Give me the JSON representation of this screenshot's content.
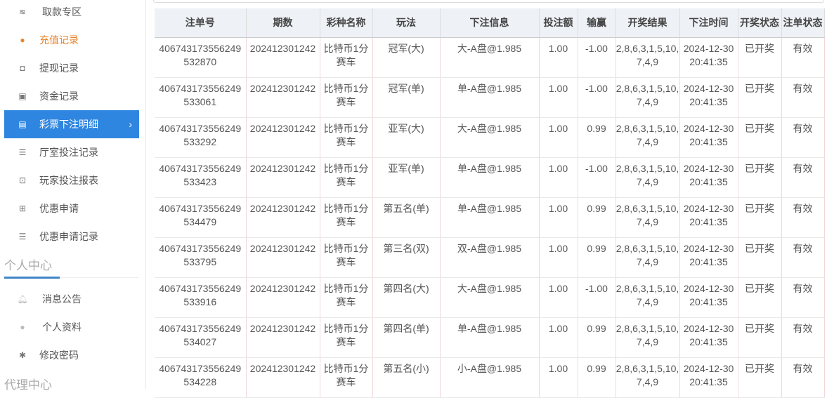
{
  "sidebar": {
    "items": [
      {
        "label": "取款专区",
        "icon": "hand-money-icon"
      },
      {
        "label": "充值记录",
        "icon": "money-bag-icon"
      },
      {
        "label": "提现记录",
        "icon": "wallet-icon"
      },
      {
        "label": "资金记录",
        "icon": "cash-box-icon"
      },
      {
        "label": "彩票下注明细",
        "icon": "list-icon"
      },
      {
        "label": "厅室投注记录",
        "icon": "list-lines-icon"
      },
      {
        "label": "玩家投注报表",
        "icon": "chart-icon"
      },
      {
        "label": "优惠申请",
        "icon": "gift-icon"
      },
      {
        "label": "优惠申请记录",
        "icon": "list-lines-icon"
      }
    ],
    "section_personal": "个人中心",
    "personal_items": [
      {
        "label": "消息公告",
        "icon": "bell-icon"
      },
      {
        "label": "个人资料",
        "icon": "user-icon"
      },
      {
        "label": "修改密码",
        "icon": "gear-icon"
      }
    ],
    "section_agent": "代理中心",
    "accent": "#2f86e0"
  },
  "table": {
    "headers": [
      "注单号",
      "期数",
      "彩种名称",
      "玩法",
      "下注信息",
      "投注额",
      "输赢",
      "开奖结果",
      "下注时间",
      "开奖状态",
      "注单状态"
    ],
    "rows": [
      [
        "406743173556249 532870",
        "202412301242",
        "比特币1分 赛车",
        "冠军(大)",
        "大-A盘@1.985",
        "1.00",
        "-1.00",
        "2,8,6,3,1,5,10, 7,4,9",
        "2024-12-30 20:41:35",
        "已开奖",
        "有效"
      ],
      [
        "406743173556249 533061",
        "202412301242",
        "比特币1分 赛车",
        "冠军(单)",
        "单-A盘@1.985",
        "1.00",
        "-1.00",
        "2,8,6,3,1,5,10, 7,4,9",
        "2024-12-30 20:41:35",
        "已开奖",
        "有效"
      ],
      [
        "406743173556249 533292",
        "202412301242",
        "比特币1分 赛车",
        "亚军(大)",
        "大-A盘@1.985",
        "1.00",
        "0.99",
        "2,8,6,3,1,5,10, 7,4,9",
        "2024-12-30 20:41:35",
        "已开奖",
        "有效"
      ],
      [
        "406743173556249 533423",
        "202412301242",
        "比特币1分 赛车",
        "亚军(单)",
        "单-A盘@1.985",
        "1.00",
        "-1.00",
        "2,8,6,3,1,5,10, 7,4,9",
        "2024-12-30 20:41:35",
        "已开奖",
        "有效"
      ],
      [
        "406743173556249 534479",
        "202412301242",
        "比特币1分 赛车",
        "第五名(单)",
        "单-A盘@1.985",
        "1.00",
        "0.99",
        "2,8,6,3,1,5,10, 7,4,9",
        "2024-12-30 20:41:35",
        "已开奖",
        "有效"
      ],
      [
        "406743173556249 533795",
        "202412301242",
        "比特币1分 赛车",
        "第三名(双)",
        "双-A盘@1.985",
        "1.00",
        "0.99",
        "2,8,6,3,1,5,10, 7,4,9",
        "2024-12-30 20:41:35",
        "已开奖",
        "有效"
      ],
      [
        "406743173556249 533916",
        "202412301242",
        "比特币1分 赛车",
        "第四名(大)",
        "大-A盘@1.985",
        "1.00",
        "-1.00",
        "2,8,6,3,1,5,10, 7,4,9",
        "2024-12-30 20:41:35",
        "已开奖",
        "有效"
      ],
      [
        "406743173556249 534027",
        "202412301242",
        "比特币1分 赛车",
        "第四名(单)",
        "单-A盘@1.985",
        "1.00",
        "0.99",
        "2,8,6,3,1,5,10, 7,4,9",
        "2024-12-30 20:41:35",
        "已开奖",
        "有效"
      ],
      [
        "406743173556249 534228",
        "202412301242",
        "比特币1分 赛车",
        "第五名(小)",
        "小-A盘@1.985",
        "1.00",
        "0.99",
        "2,8,6,3,1,5,10, 7,4,9",
        "2024-12-30 20:41:35",
        "已开奖",
        "有效"
      ]
    ]
  }
}
